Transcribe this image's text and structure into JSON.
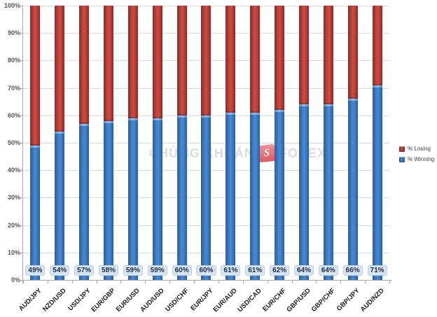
{
  "chart_data": {
    "type": "bar",
    "stacked": true,
    "orientation": "vertical",
    "title": "",
    "xlabel": "",
    "ylabel": "",
    "categories": [
      "AUD/JPY",
      "NZD/USD",
      "USD/JPY",
      "EUR/GBP",
      "EUR/USD",
      "AUD/USD",
      "USD/CHF",
      "EUR/JPY",
      "EUR/AUD",
      "USD/CAD",
      "EUR/CHF",
      "GBP/USD",
      "GBP/CHF",
      "GBP/JPY",
      "AUD/NZD"
    ],
    "series": [
      {
        "name": "% Winning",
        "color": "#3d7cc9",
        "values": [
          49,
          54,
          57,
          58,
          59,
          59,
          60,
          60,
          61,
          61,
          62,
          64,
          64,
          66,
          71
        ]
      },
      {
        "name": "% Losing",
        "color": "#be3b38",
        "values": [
          51,
          46,
          43,
          42,
          41,
          41,
          40,
          40,
          39,
          39,
          38,
          36,
          36,
          34,
          29
        ]
      }
    ],
    "data_labels": [
      "49%",
      "54%",
      "57%",
      "58%",
      "59%",
      "59%",
      "60%",
      "60%",
      "61%",
      "61%",
      "62%",
      "64%",
      "64%",
      "66%",
      "71%"
    ],
    "y_ticks": [
      "0%",
      "10%",
      "20%",
      "30%",
      "40%",
      "50%",
      "60%",
      "70%",
      "80%",
      "90%",
      "100%"
    ],
    "ylim": [
      0,
      100
    ],
    "grid": true,
    "legend_position": "right"
  },
  "legend": {
    "items": [
      {
        "label": "% Losing",
        "color": "#be3b38",
        "edge": "#8c2a26",
        "mid": "#c94840"
      },
      {
        "label": "% Winning",
        "color": "#3d7cc9",
        "edge": "#2a5e97",
        "mid": "#4486d2"
      }
    ]
  },
  "watermark": {
    "text_left": "CHỨNG KHOÁN",
    "logo_letter": "S",
    "text_right": "FOREX"
  },
  "colors": {
    "winning": "#3d7cc9",
    "winning_edge": "#2a5e97",
    "winning_cap": "#8cc2ec",
    "losing": "#be3b38",
    "losing_edge": "#8c2a26",
    "gridline": "#d9d9d9",
    "axis": "#a6a6a6",
    "value_box_bg": "#d6e4f4",
    "value_text": "#1b2a4a",
    "watermark_text": "#dcdcdc",
    "watermark_logo": "#e05a62"
  }
}
